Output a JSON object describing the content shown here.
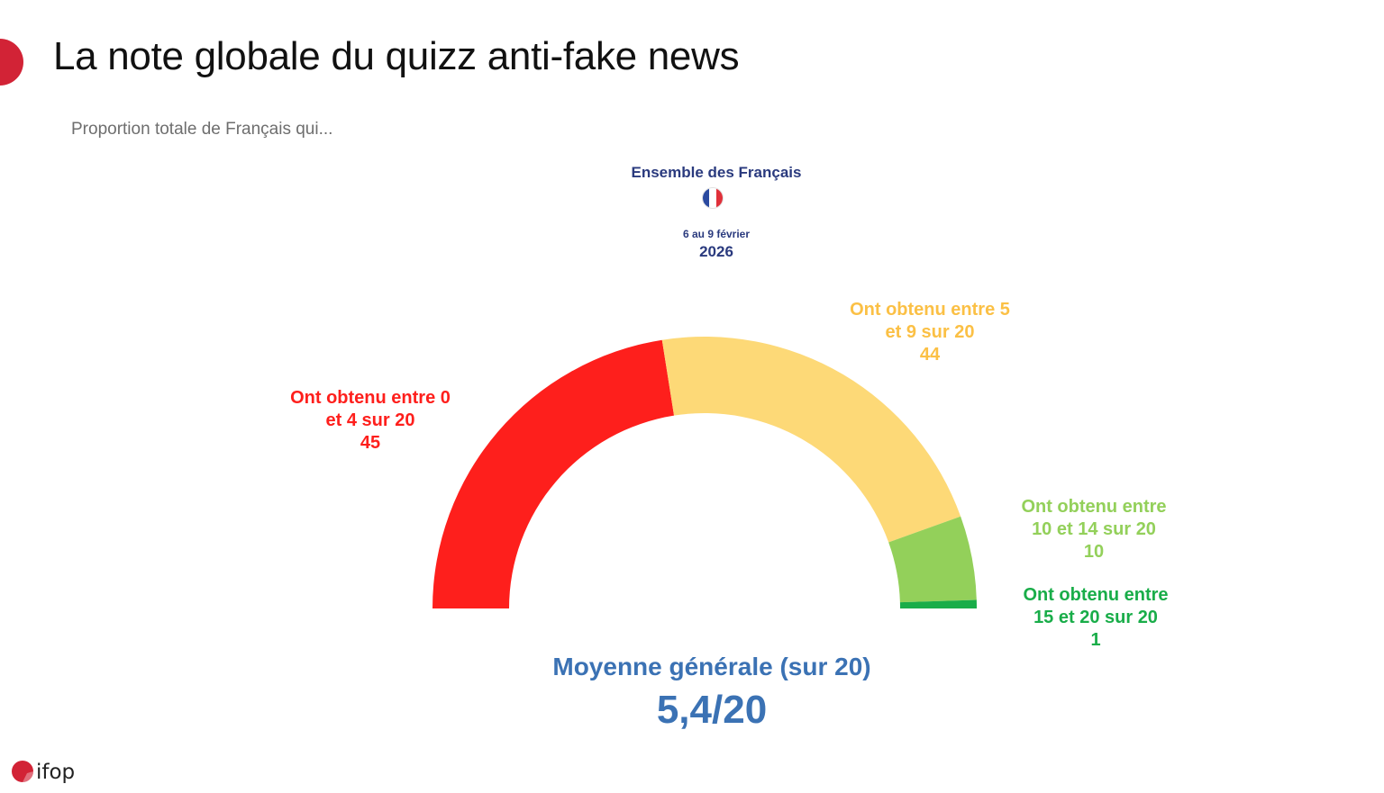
{
  "header": {
    "title": "La note globale du quizz anti-fake news",
    "subtitle": "Proportion totale de Français qui..."
  },
  "population": {
    "name": "Ensemble des Français",
    "date": "6 au 9 février",
    "year": "2026",
    "flag_icon": "french-flag-icon"
  },
  "chart_data": {
    "type": "pie",
    "style": "half-donut gauge",
    "total": 100,
    "slices": [
      {
        "line1": "Ont obtenu entre 0",
        "line2": "et 4 sur 20",
        "value": 45,
        "display": "45",
        "color": "#fe1f1c"
      },
      {
        "line1": "Ont obtenu entre 5",
        "line2": "et 9 sur 20",
        "value": 44,
        "display": "44",
        "color": "#fdd977"
      },
      {
        "line1": "Ont obtenu entre",
        "line2": "10 et 14 sur 20",
        "value": 10,
        "display": "10",
        "color": "#93d05a"
      },
      {
        "line1": "Ont obtenu entre",
        "line2": "15 et 20 sur 20",
        "value": 1,
        "display": "1",
        "color": "#19ad49"
      }
    ],
    "label_colors": [
      "#fe1f1c",
      "#fbc045",
      "#93d05a",
      "#19ad49"
    ]
  },
  "average": {
    "label": "Moyenne générale (sur 20)",
    "value": "5,4/20"
  },
  "logo": {
    "text": "ifop",
    "color": "#d22336"
  }
}
